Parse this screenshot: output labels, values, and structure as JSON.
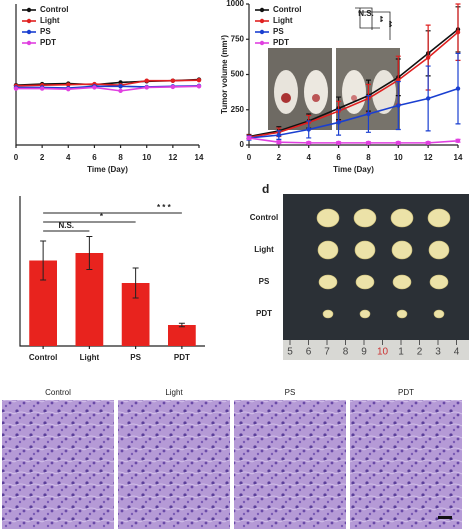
{
  "chart_data": [
    {
      "type": "line",
      "x_label": "Time (Day)",
      "x": [
        0,
        2,
        4,
        6,
        8,
        10,
        12,
        14
      ],
      "xlim": [
        0,
        14
      ],
      "xticks": [
        0,
        2,
        4,
        6,
        8,
        10,
        12,
        14
      ],
      "ylim": [
        0,
        25
      ],
      "series": [
        {
          "name": "Control",
          "color": "#111111",
          "values": [
            10.6,
            10.8,
            10.9,
            10.7,
            11.1,
            11.3,
            11.4,
            11.6
          ]
        },
        {
          "name": "Light",
          "color": "#e02020",
          "values": [
            10.5,
            10.6,
            10.7,
            10.8,
            10.6,
            11.4,
            11.4,
            11.5
          ]
        },
        {
          "name": "PS",
          "color": "#1a3fd0",
          "values": [
            10.2,
            10.2,
            10.1,
            10.4,
            10.4,
            10.3,
            10.4,
            10.5
          ]
        },
        {
          "name": "PDT",
          "color": "#e040e0",
          "values": [
            10.0,
            10.0,
            9.9,
            10.2,
            9.6,
            10.2,
            10.3,
            10.4
          ]
        }
      ]
    },
    {
      "type": "line",
      "x_label": "Time (Day)",
      "y_label": "Tumor volume (mm³)",
      "x": [
        0,
        2,
        4,
        6,
        8,
        10,
        12,
        14
      ],
      "xlim": [
        0,
        14
      ],
      "xticks": [
        0,
        2,
        4,
        6,
        8,
        10,
        12,
        14
      ],
      "ylim": [
        0,
        1000
      ],
      "yticks": [
        0,
        250,
        500,
        750,
        1000
      ],
      "annotations": [
        "N.S.",
        "**",
        "**"
      ],
      "series": [
        {
          "name": "Control",
          "color": "#111111",
          "values": [
            60,
            100,
            170,
            260,
            350,
            480,
            650,
            820
          ],
          "errors": [
            15,
            30,
            50,
            80,
            110,
            130,
            160,
            160
          ]
        },
        {
          "name": "Light",
          "color": "#e02020",
          "values": [
            55,
            90,
            160,
            240,
            330,
            460,
            620,
            800
          ],
          "errors": [
            15,
            30,
            50,
            70,
            100,
            170,
            230,
            200
          ]
        },
        {
          "name": "PS",
          "color": "#1a3fd0",
          "values": [
            50,
            70,
            110,
            160,
            220,
            280,
            330,
            400
          ],
          "errors": [
            15,
            30,
            60,
            90,
            130,
            170,
            230,
            250
          ]
        },
        {
          "name": "PDT",
          "color": "#e040e0",
          "values": [
            50,
            20,
            15,
            15,
            15,
            15,
            15,
            30
          ],
          "errors": [
            10,
            10,
            8,
            8,
            8,
            8,
            8,
            10
          ]
        }
      ]
    },
    {
      "type": "bar",
      "categories": [
        "Control",
        "Light",
        "PS",
        "PDT"
      ],
      "values": [
        0.57,
        0.62,
        0.42,
        0.14
      ],
      "errors": [
        0.13,
        0.11,
        0.1,
        0.012
      ],
      "color": "#e8231e",
      "ylim": [
        0,
        1
      ],
      "annotations": [
        "N.S.",
        "*",
        "* * *"
      ]
    }
  ],
  "tumor_photo": {
    "label": "d",
    "rows": [
      "Control",
      "Light",
      "PS",
      "PDT"
    ],
    "ruler": [
      "5",
      "6",
      "7",
      "8",
      "9",
      "10",
      "1",
      "2",
      "3",
      "4"
    ]
  },
  "histology": {
    "labels": [
      "Control",
      "Light",
      "PS",
      "PDT"
    ]
  }
}
